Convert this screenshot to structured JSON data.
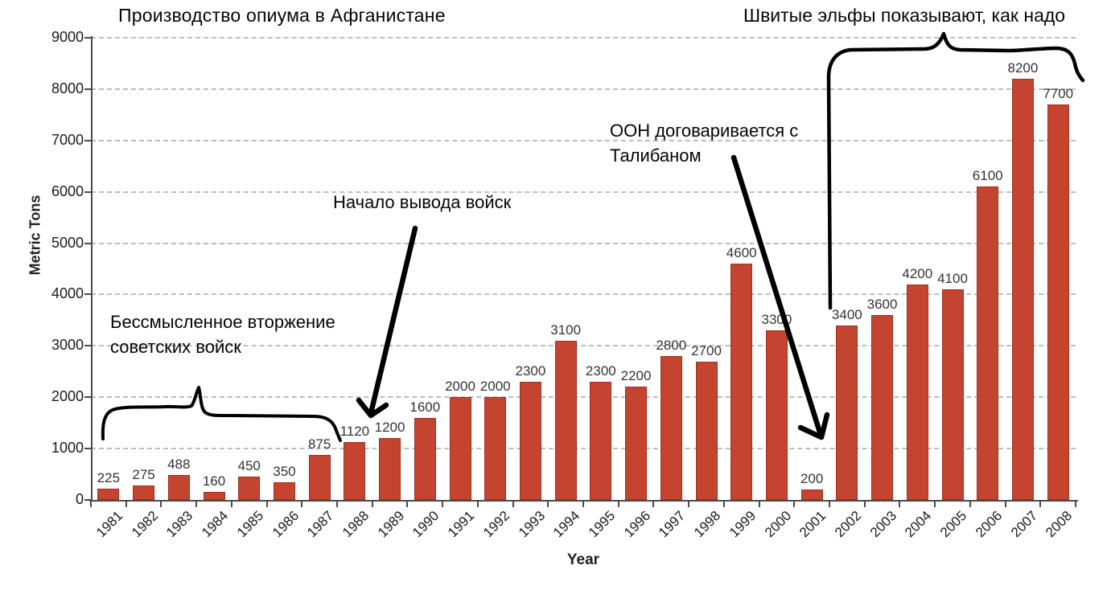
{
  "page": {
    "background": "#ffffff"
  },
  "chart_data": {
    "type": "bar",
    "title": "Производство опиума в Афганистане",
    "xlabel": "Year",
    "ylabel": "Metric Tons",
    "categories": [
      "1981",
      "1982",
      "1983",
      "1984",
      "1985",
      "1986",
      "1987",
      "1988",
      "1989",
      "1990",
      "1991",
      "1992",
      "1993",
      "1994",
      "1995",
      "1996",
      "1997",
      "1998",
      "1999",
      "2000",
      "2001",
      "2002",
      "2003",
      "2004",
      "2005",
      "2006",
      "2007",
      "2008"
    ],
    "values": [
      225,
      275,
      488,
      160,
      450,
      350,
      875,
      1120,
      1200,
      1600,
      2000,
      2000,
      2300,
      3100,
      2300,
      2200,
      2800,
      2700,
      4600,
      3300,
      200,
      3400,
      3600,
      4200,
      4100,
      6100,
      8200,
      7700
    ],
    "ylim": [
      0,
      9000
    ],
    "yticks": [
      0,
      1000,
      2000,
      3000,
      4000,
      5000,
      6000,
      7000,
      8000,
      9000
    ],
    "grid": "horizontal-dashed",
    "legend": "none",
    "bar_color": "#c5442f",
    "bar_edge_color": "#9c3120",
    "annotations": [
      {
        "name": "soviet-invasion",
        "lines": [
          "Бессмысленное вторжение",
          "советских войск"
        ],
        "pointer": "hand-drawn brace under years 1981–1987"
      },
      {
        "name": "troop-withdrawal",
        "lines": [
          "Начало вывода войск"
        ],
        "pointer": "hand-drawn arrow to 1988 bar"
      },
      {
        "name": "un-taliban",
        "lines": [
          "ООН договаривается с",
          "Талибаном"
        ],
        "pointer": "hand-drawn arrow to 2001 bar"
      },
      {
        "name": "elves",
        "lines": [
          "Швитые эльфы показывают, как надо"
        ],
        "pointer": "hand-drawn brace over years 2002–2008"
      }
    ]
  }
}
